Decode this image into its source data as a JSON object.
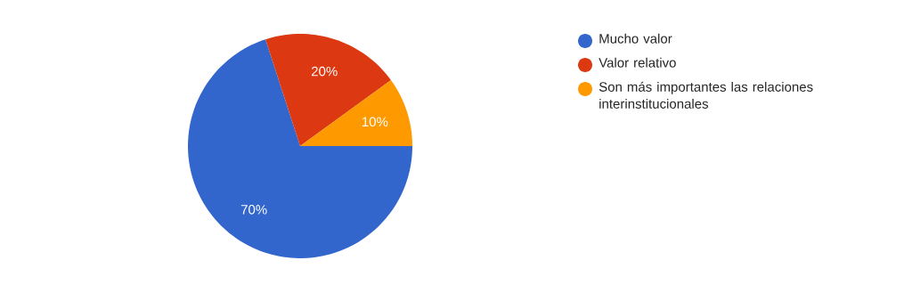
{
  "chart_data": {
    "type": "pie",
    "categories": [
      "Mucho valor",
      "Valor relativo",
      "Son más importantes las relaciones interinstitucionales"
    ],
    "values": [
      70,
      20,
      10
    ],
    "value_labels": [
      "70%",
      "20%",
      "10%"
    ],
    "colors": [
      "#3366cc",
      "#dc3912",
      "#ff9900"
    ],
    "legend": "right"
  }
}
